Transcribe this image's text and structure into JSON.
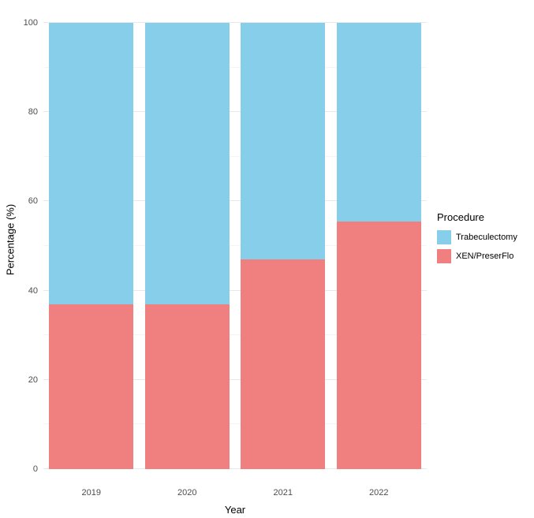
{
  "chart_data": {
    "type": "bar",
    "stacked": true,
    "categories": [
      "2019",
      "2020",
      "2021",
      "2022"
    ],
    "series": [
      {
        "name": "XEN/PreserFlo",
        "color": "#F08080",
        "values": [
          37,
          37,
          47,
          55.5
        ]
      },
      {
        "name": "Trabeculectomy",
        "color": "#87CEEB",
        "values": [
          63,
          63,
          53,
          44.5
        ]
      }
    ],
    "title": "",
    "xlabel": "Year",
    "ylabel": "Percentage (%)",
    "ylim": [
      0,
      100
    ],
    "yticks": [
      0,
      20,
      40,
      60,
      80,
      100
    ],
    "grid": true,
    "legend_position": "right",
    "legend_title": "Procedure"
  },
  "axes": {
    "x_title": "Year",
    "y_title": "Percentage (%)"
  },
  "legend": {
    "title": "Procedure",
    "items": [
      {
        "label": "Trabeculectomy",
        "color": "#87CEEB"
      },
      {
        "label": "XEN/PreserFlo",
        "color": "#F08080"
      }
    ]
  }
}
